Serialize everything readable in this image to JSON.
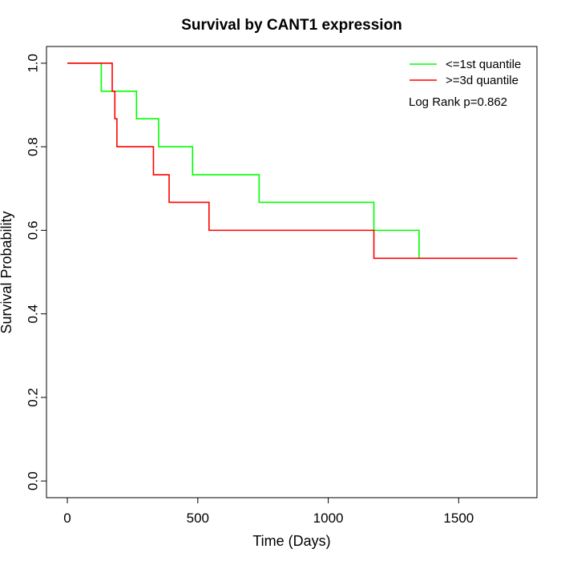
{
  "chart_data": {
    "type": "line",
    "subtype": "kaplan-meier step",
    "title": "Survival by CANT1 expression",
    "xlabel": "Time (Days)",
    "ylabel": "Survival Probability",
    "xlim": [
      -80,
      1800
    ],
    "ylim": [
      -0.04,
      1.04
    ],
    "xticks": [
      0,
      500,
      1000,
      1500
    ],
    "yticks": [
      0.0,
      0.2,
      0.4,
      0.6,
      0.8,
      1.0
    ],
    "xtick_labels": [
      "0",
      "500",
      "1000",
      "1500"
    ],
    "ytick_labels": [
      "0.0",
      "0.2",
      "0.4",
      "0.6",
      "0.8",
      "1.0"
    ],
    "grid": false,
    "legend_position": "top-right",
    "annotation": "Log Rank p=0.862",
    "series": [
      {
        "name": "<=1st quantile",
        "color": "#00ff00",
        "step_x": [
          0,
          130,
          265,
          350,
          480,
          735,
          1175,
          1348
        ],
        "step_y": [
          1.0,
          0.933,
          0.867,
          0.8,
          0.733,
          0.667,
          0.6,
          0.533
        ]
      },
      {
        "name": ">=3d quantile",
        "color": "#ff0000",
        "step_x": [
          0,
          172,
          182,
          190,
          330,
          390,
          543,
          1175,
          1725
        ],
        "step_y": [
          1.0,
          0.933,
          0.867,
          0.8,
          0.733,
          0.667,
          0.6,
          0.533,
          0.533
        ]
      }
    ]
  }
}
